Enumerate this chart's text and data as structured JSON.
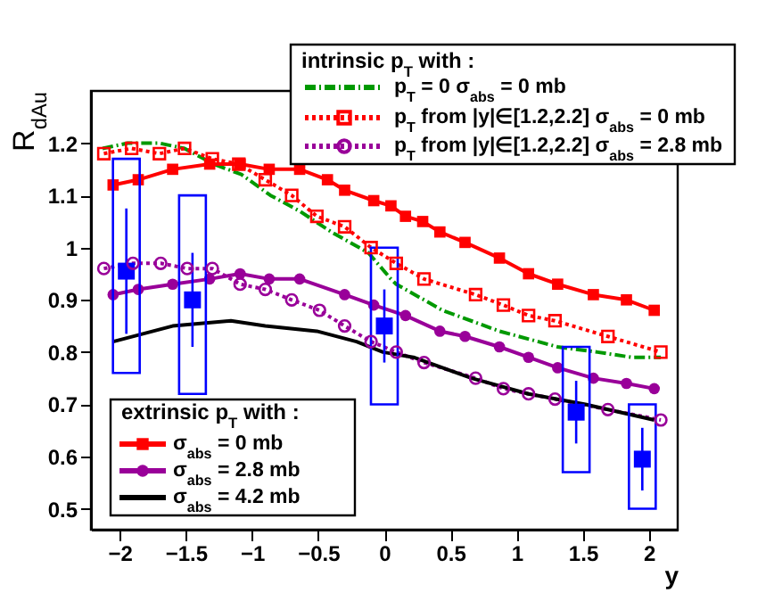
{
  "chart_data": {
    "type": "line",
    "xlabel": "y",
    "ylabel": "R$_{dAu}$",
    "legend_title": "intrinsic p$_{T}$ with :",
    "annotations": [
      "extrinsic p$_{T}$ with :"
    ],
    "xlim": [
      -2.15,
      2.15
    ],
    "ylim": [
      0.46,
      1.3
    ],
    "xticks": [
      -2,
      -1.5,
      -1,
      -0.5,
      0,
      0.5,
      1,
      1.5,
      2
    ],
    "yticks": [
      0.5,
      0.6,
      0.7,
      0.8,
      0.9,
      1,
      1.1,
      1.2
    ],
    "grid": false,
    "legend": "top right",
    "series": [
      {
        "name": "p$_{T}$ = 0 σ$_{abs}$ = 0 mb",
        "color": "#009900",
        "line_style": "dashed",
        "marker": "none",
        "x": [
          -2.13,
          -1.94,
          -1.7,
          -1.51,
          -1.29,
          -1.08,
          -0.86,
          -0.64,
          -0.4,
          -0.12,
          0.05,
          0.09,
          0.44,
          0.87,
          1.31,
          1.61,
          1.87,
          2.09
        ],
        "values": [
          1.19,
          1.2,
          1.2,
          1.19,
          1.16,
          1.14,
          1.1,
          1.07,
          1.03,
          0.99,
          0.94,
          0.93,
          0.88,
          0.84,
          0.81,
          0.8,
          0.79,
          0.79
        ]
      },
      {
        "name": "p$_{T}$ from |y|∈[1.2,2.2] σ$_{abs}$ = 0 mb",
        "color": "#ff0000",
        "line_style": "dotted",
        "marker": "square",
        "x": [
          -2.12,
          -1.91,
          -1.7,
          -1.51,
          -1.3,
          -1.1,
          -0.9,
          -0.7,
          -0.51,
          -0.3,
          -0.1,
          0.09,
          0.3,
          0.69,
          0.9,
          1.09,
          1.29,
          1.69,
          2.09
        ],
        "values": [
          1.18,
          1.19,
          1.18,
          1.19,
          1.17,
          1.16,
          1.13,
          1.1,
          1.06,
          1.04,
          1,
          0.97,
          0.94,
          0.91,
          0.89,
          0.87,
          0.86,
          0.83,
          0.8
        ]
      },
      {
        "name": "p$_{T}$ from |y|∈[1.2,2.2] σ$_{abs}$ = 2.8 mb",
        "color": "#990099",
        "line_style": "dotted",
        "marker": "circle",
        "x": [
          -2.12,
          -1.9,
          -1.69,
          -1.49,
          -1.3,
          -1.09,
          -0.9,
          -0.7,
          -0.49,
          -0.3,
          -0.1,
          0.09,
          0.3,
          0.69,
          0.9,
          1.09,
          1.29,
          1.69,
          2.09
        ],
        "values": [
          0.96,
          0.97,
          0.97,
          0.96,
          0.96,
          0.93,
          0.92,
          0.9,
          0.88,
          0.85,
          0.82,
          0.8,
          0.78,
          0.75,
          0.73,
          0.72,
          0.71,
          0.69,
          0.67
        ]
      },
      {
        "name": "σ$_{abs}$ = 0 mb",
        "color": "#ff0000",
        "line_style": "solid",
        "marker": "square",
        "x": [
          -2.05,
          -1.86,
          -1.6,
          -1.32,
          -1.09,
          -0.87,
          -0.64,
          -0.43,
          -0.3,
          -0.08,
          0.05,
          0.16,
          0.29,
          0.42,
          0.61,
          0.87,
          1.09,
          1.31,
          1.58,
          1.83,
          2.04
        ],
        "values": [
          1.12,
          1.13,
          1.15,
          1.16,
          1.16,
          1.15,
          1.15,
          1.13,
          1.11,
          1.09,
          1.08,
          1.06,
          1.05,
          1.03,
          1.01,
          0.98,
          0.95,
          0.93,
          0.91,
          0.9,
          0.88
        ]
      },
      {
        "name": "σ$_{abs}$ = 2.8 mb",
        "color": "#990099",
        "line_style": "solid",
        "marker": "circle",
        "x": [
          -2.05,
          -1.86,
          -1.6,
          -1.32,
          -1.09,
          -0.87,
          -0.64,
          -0.3,
          -0.08,
          0.16,
          0.42,
          0.61,
          0.87,
          1.09,
          1.31,
          1.58,
          1.83,
          2.04
        ],
        "values": [
          0.91,
          0.92,
          0.93,
          0.94,
          0.95,
          0.94,
          0.94,
          0.91,
          0.89,
          0.87,
          0.84,
          0.83,
          0.81,
          0.79,
          0.77,
          0.75,
          0.74,
          0.73
        ]
      },
      {
        "name": "σ$_{abs}$ = 4.2 mb",
        "color": "#000000",
        "line_style": "solid",
        "marker": "none",
        "x": [
          -2.05,
          -1.6,
          -1.16,
          -0.9,
          -0.51,
          -0.21,
          -0.01,
          0.22,
          0.66,
          1.09,
          1.52,
          2.04
        ],
        "values": [
          0.82,
          0.85,
          0.86,
          0.85,
          0.84,
          0.82,
          0.8,
          0.79,
          0.75,
          0.72,
          0.7,
          0.67
        ]
      },
      {
        "type": "scatter",
        "color": "#0000ff",
        "marker": "square",
        "x": [
          -1.95,
          -1.45,
          0,
          1.45,
          1.95
        ],
        "values": [
          0.955,
          0.9,
          0.85,
          0.685,
          0.595
        ],
        "errors": [
          0.12,
          0.09,
          0.07,
          0.06,
          0.06
        ]
      },
      {
        "type": "bar",
        "color": "#0000ff",
        "x": [
          -1.95,
          -1.45,
          0,
          1.45,
          1.95
        ],
        "base": [
          0.76,
          0.72,
          0.7,
          0.57,
          0.5
        ],
        "values": [
          0.41,
          0.38,
          0.3,
          0.24,
          0.2
        ]
      }
    ]
  }
}
